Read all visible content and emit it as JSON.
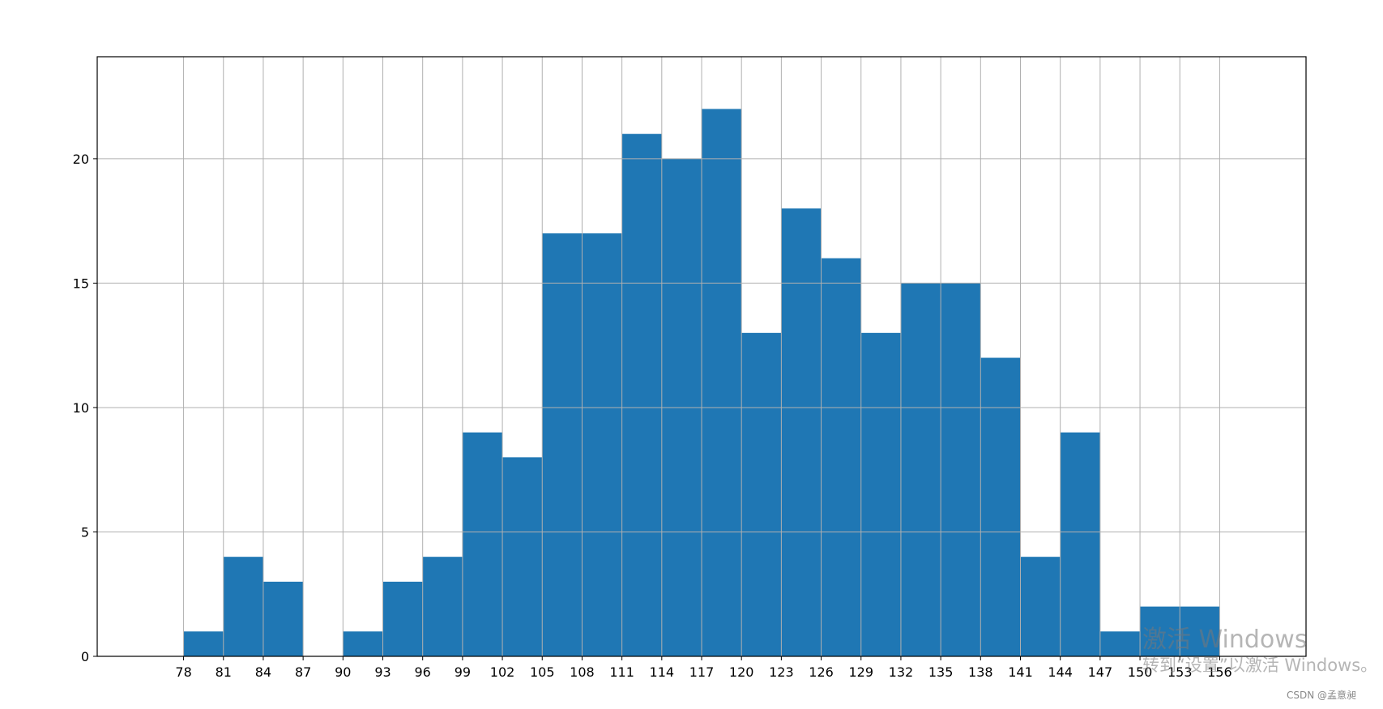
{
  "chart_data": {
    "type": "bar",
    "bin_edges": [
      78,
      81,
      84,
      87,
      90,
      93,
      96,
      99,
      102,
      105,
      108,
      111,
      114,
      117,
      120,
      123,
      126,
      129,
      132,
      135,
      138,
      141,
      144,
      147,
      150,
      153,
      156
    ],
    "values": [
      1,
      4,
      3,
      0,
      1,
      3,
      4,
      9,
      8,
      17,
      17,
      21,
      20,
      22,
      13,
      18,
      16,
      13,
      15,
      15,
      12,
      4,
      9,
      1,
      2,
      2
    ],
    "xticks": [
      "78",
      "81",
      "84",
      "87",
      "90",
      "93",
      "96",
      "99",
      "102",
      "105",
      "108",
      "111",
      "114",
      "117",
      "120",
      "123",
      "126",
      "129",
      "132",
      "135",
      "138",
      "141",
      "144",
      "147",
      "150",
      "153",
      "156"
    ],
    "yticks": [
      "0",
      "5",
      "10",
      "15",
      "20"
    ],
    "xlim": [
      71.5,
      162.5
    ],
    "ylim": [
      0,
      22
    ],
    "grid": true,
    "bar_color": "#1f77b4",
    "grid_color": "#b0b0b0"
  },
  "watermark": {
    "line1": "激活 Windows",
    "line2": "转到“设置”以激活 Windows。"
  },
  "credit": "CSDN @孟意昶"
}
